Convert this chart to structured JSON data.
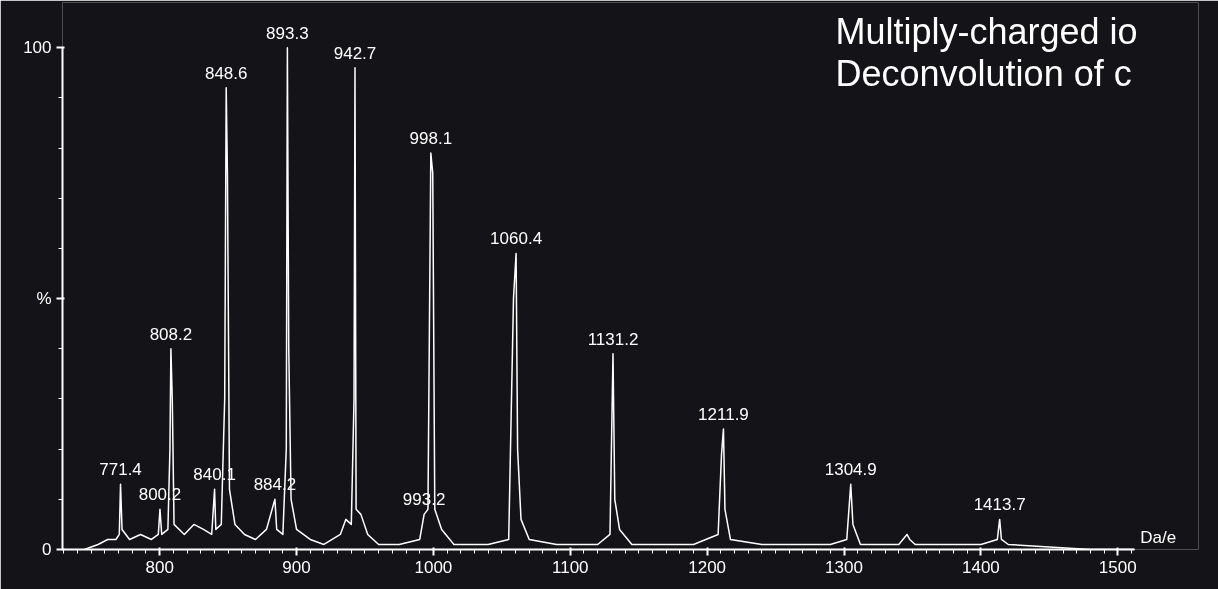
{
  "chart_data": {
    "type": "line",
    "title": "Multiply-charged io\nDeconvolution of c",
    "xlabel": "Da/e",
    "xlim": [
      729,
      1512
    ],
    "xticks": [
      800,
      900,
      1000,
      1100,
      1200,
      1300,
      1400,
      1500
    ],
    "ylim": [
      0,
      100
    ],
    "yticks": [
      0,
      {
        "value": 50,
        "label": "%"
      },
      100
    ],
    "grid": false,
    "marker": "none",
    "line_style": "solid",
    "series": [
      {
        "color": "#ffffff",
        "x": [
          745,
          755,
          762,
          768,
          770.5,
          771.4,
          772.5,
          778,
          786,
          794,
          799,
          800.2,
          801.5,
          806,
          807.5,
          808.2,
          809.2,
          810.5,
          818,
          825,
          832,
          838,
          840.1,
          841,
          845,
          847.5,
          848.6,
          849.5,
          851,
          855,
          862,
          870,
          878,
          884.2,
          885.5,
          890,
          892.5,
          893.3,
          894.3,
          896,
          900,
          910,
          920,
          932,
          936,
          940,
          942,
          942.7,
          943.5,
          947,
          952,
          960,
          975,
          990,
          993.2,
          996,
          998.1,
          999.5,
          1001,
          1006,
          1015,
          1040,
          1055,
          1058.5,
          1060.4,
          1061.5,
          1064,
          1070,
          1090,
          1120,
          1129,
          1131.2,
          1132.5,
          1136,
          1145,
          1190,
          1208,
          1210.5,
          1211.9,
          1213,
          1217,
          1240,
          1290,
          1302,
          1304.9,
          1306.5,
          1312,
          1340,
          1346,
          1348,
          1352,
          1400,
          1412,
          1413.7,
          1415,
          1420,
          1480,
          1512
        ],
        "values": [
          0,
          1,
          2,
          2,
          3,
          13,
          4,
          2,
          3,
          2,
          3,
          8,
          3,
          4,
          20,
          40,
          30,
          5,
          3,
          5,
          4,
          3,
          12,
          4,
          5,
          30,
          92,
          75,
          12,
          5,
          3,
          2,
          4,
          10,
          4,
          3,
          20,
          100,
          40,
          10,
          4,
          2,
          1,
          3,
          6,
          5,
          30,
          96,
          8,
          7,
          3,
          1,
          1,
          2,
          7,
          8,
          79,
          75,
          8,
          4,
          1,
          1,
          2,
          50,
          59,
          20,
          6,
          2,
          1,
          1,
          3,
          39,
          10,
          4,
          1,
          1,
          3,
          19,
          24,
          8,
          2,
          1,
          1,
          2,
          13,
          5,
          1,
          1,
          3,
          2,
          1,
          1,
          2,
          6,
          2,
          1,
          0,
          0
        ]
      }
    ],
    "annotations": [
      {
        "text": "771.4",
        "x": 771.4,
        "y": 13
      },
      {
        "text": "800.2",
        "x": 800.2,
        "y": 8
      },
      {
        "text": "808.2",
        "x": 808.2,
        "y": 40
      },
      {
        "text": "840.1",
        "x": 840.1,
        "y": 12
      },
      {
        "text": "848.6",
        "x": 848.6,
        "y": 92
      },
      {
        "text": "884.2",
        "x": 884.2,
        "y": 10
      },
      {
        "text": "893.3",
        "x": 893.3,
        "y": 100
      },
      {
        "text": "942.7",
        "x": 942.7,
        "y": 96
      },
      {
        "text": "993.2",
        "x": 993.2,
        "y": 7
      },
      {
        "text": "998.1",
        "x": 998.1,
        "y": 79
      },
      {
        "text": "1060.4",
        "x": 1060.4,
        "y": 59
      },
      {
        "text": "1131.2",
        "x": 1131.2,
        "y": 39
      },
      {
        "text": "1211.9",
        "x": 1211.9,
        "y": 24
      },
      {
        "text": "1304.9",
        "x": 1304.9,
        "y": 13
      },
      {
        "text": "1413.7",
        "x": 1413.7,
        "y": 6
      }
    ]
  }
}
